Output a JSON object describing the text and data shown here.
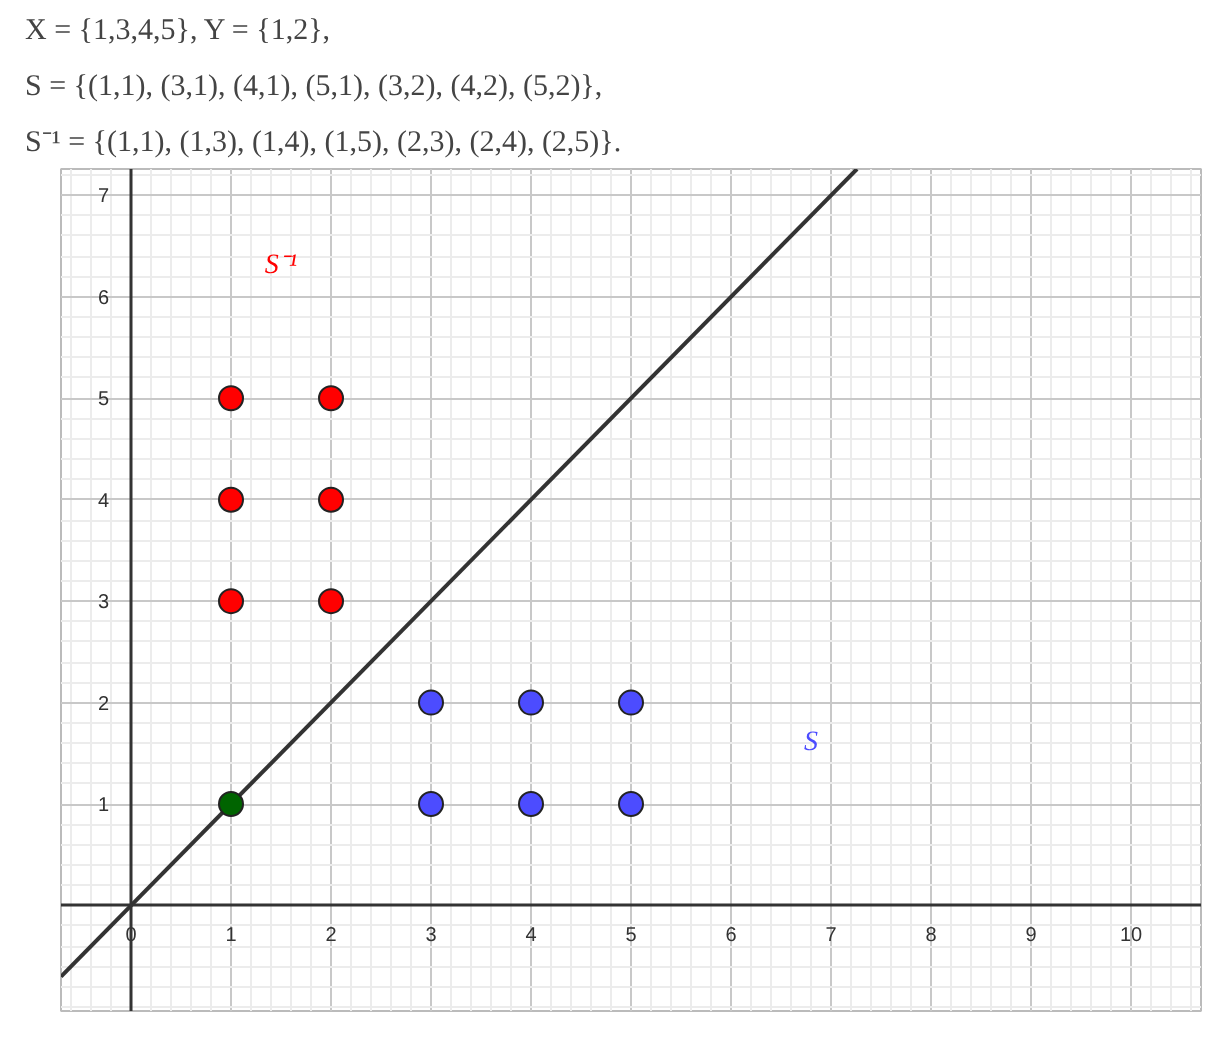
{
  "chart_data": {
    "type": "scatter",
    "annotations": [
      "X = {1,3,4,5},        Y = {1,2},",
      "S = {(1,1), (3,1), (4,1), (5,1), (3,2), (4,2), (5,2)},",
      "S⁻¹ = {(1,1), (1,3), (1,4), (1,5), (2,3), (2,4), (2,5)}."
    ],
    "series": [
      {
        "type": "line",
        "color": "#333333",
        "x": [
          -0.7,
          7.26
        ],
        "values": [
          -0.7,
          7.26
        ],
        "marker": "none"
      },
      {
        "name": "S⁻¹",
        "color": "#ff0000",
        "x": [
          1,
          1,
          1,
          2,
          2,
          2
        ],
        "values": [
          3,
          4,
          5,
          3,
          4,
          5
        ],
        "marker": "circle"
      },
      {
        "name": "S",
        "color": "#4c4cff",
        "x": [
          3,
          4,
          5,
          3,
          4,
          5
        ],
        "values": [
          1,
          1,
          1,
          2,
          2,
          2
        ],
        "marker": "circle"
      },
      {
        "color": "#006400",
        "x": [
          1
        ],
        "values": [
          1
        ],
        "marker": "circle"
      }
    ],
    "xlim": [
      -0.7,
      10.7
    ],
    "ylim": [
      -1.04,
      7.26
    ],
    "xticks": [
      0,
      1,
      2,
      3,
      4,
      5,
      6,
      7,
      8,
      9,
      10
    ],
    "yticks": [
      1,
      2,
      3,
      4,
      5,
      6,
      7
    ],
    "grid": true
  }
}
